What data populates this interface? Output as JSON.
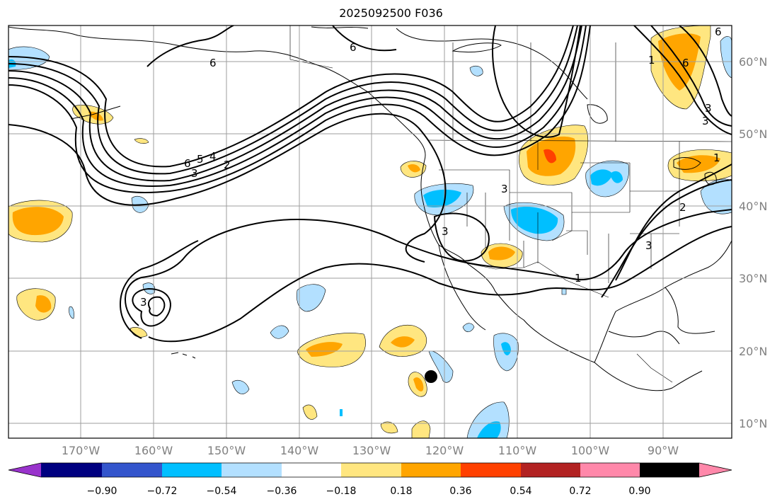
{
  "title": "2025092500 F036",
  "lat_labels": [
    "60°N",
    "50°N",
    "40°N",
    "30°N",
    "20°N",
    "10°N"
  ],
  "lon_labels": [
    "170°W",
    "160°W",
    "150°W",
    "140°W",
    "130°W",
    "120°W",
    "110°W",
    "100°W",
    "90°W"
  ],
  "colorbar": {
    "colors": [
      "#9933cc",
      "#000080",
      "#3355cc",
      "#00bfff",
      "#b3e0ff",
      "#ffffff",
      "#ffe680",
      "#ffa500",
      "#ff4000",
      "#b22222",
      "#ff88aa"
    ],
    "tick_labels": [
      "−0.90",
      "−0.72",
      "−0.54",
      "−0.36",
      "−0.18",
      "0.18",
      "0.36",
      "0.54",
      "0.72",
      "0.90"
    ]
  },
  "contour_labels": [
    "6",
    "6",
    "6",
    "5",
    "4",
    "3",
    "2",
    "3",
    "3",
    "3",
    "3",
    "1",
    "6",
    "6",
    "3",
    "1",
    "2",
    "1",
    "3"
  ],
  "marker": "storm-center-dot"
}
